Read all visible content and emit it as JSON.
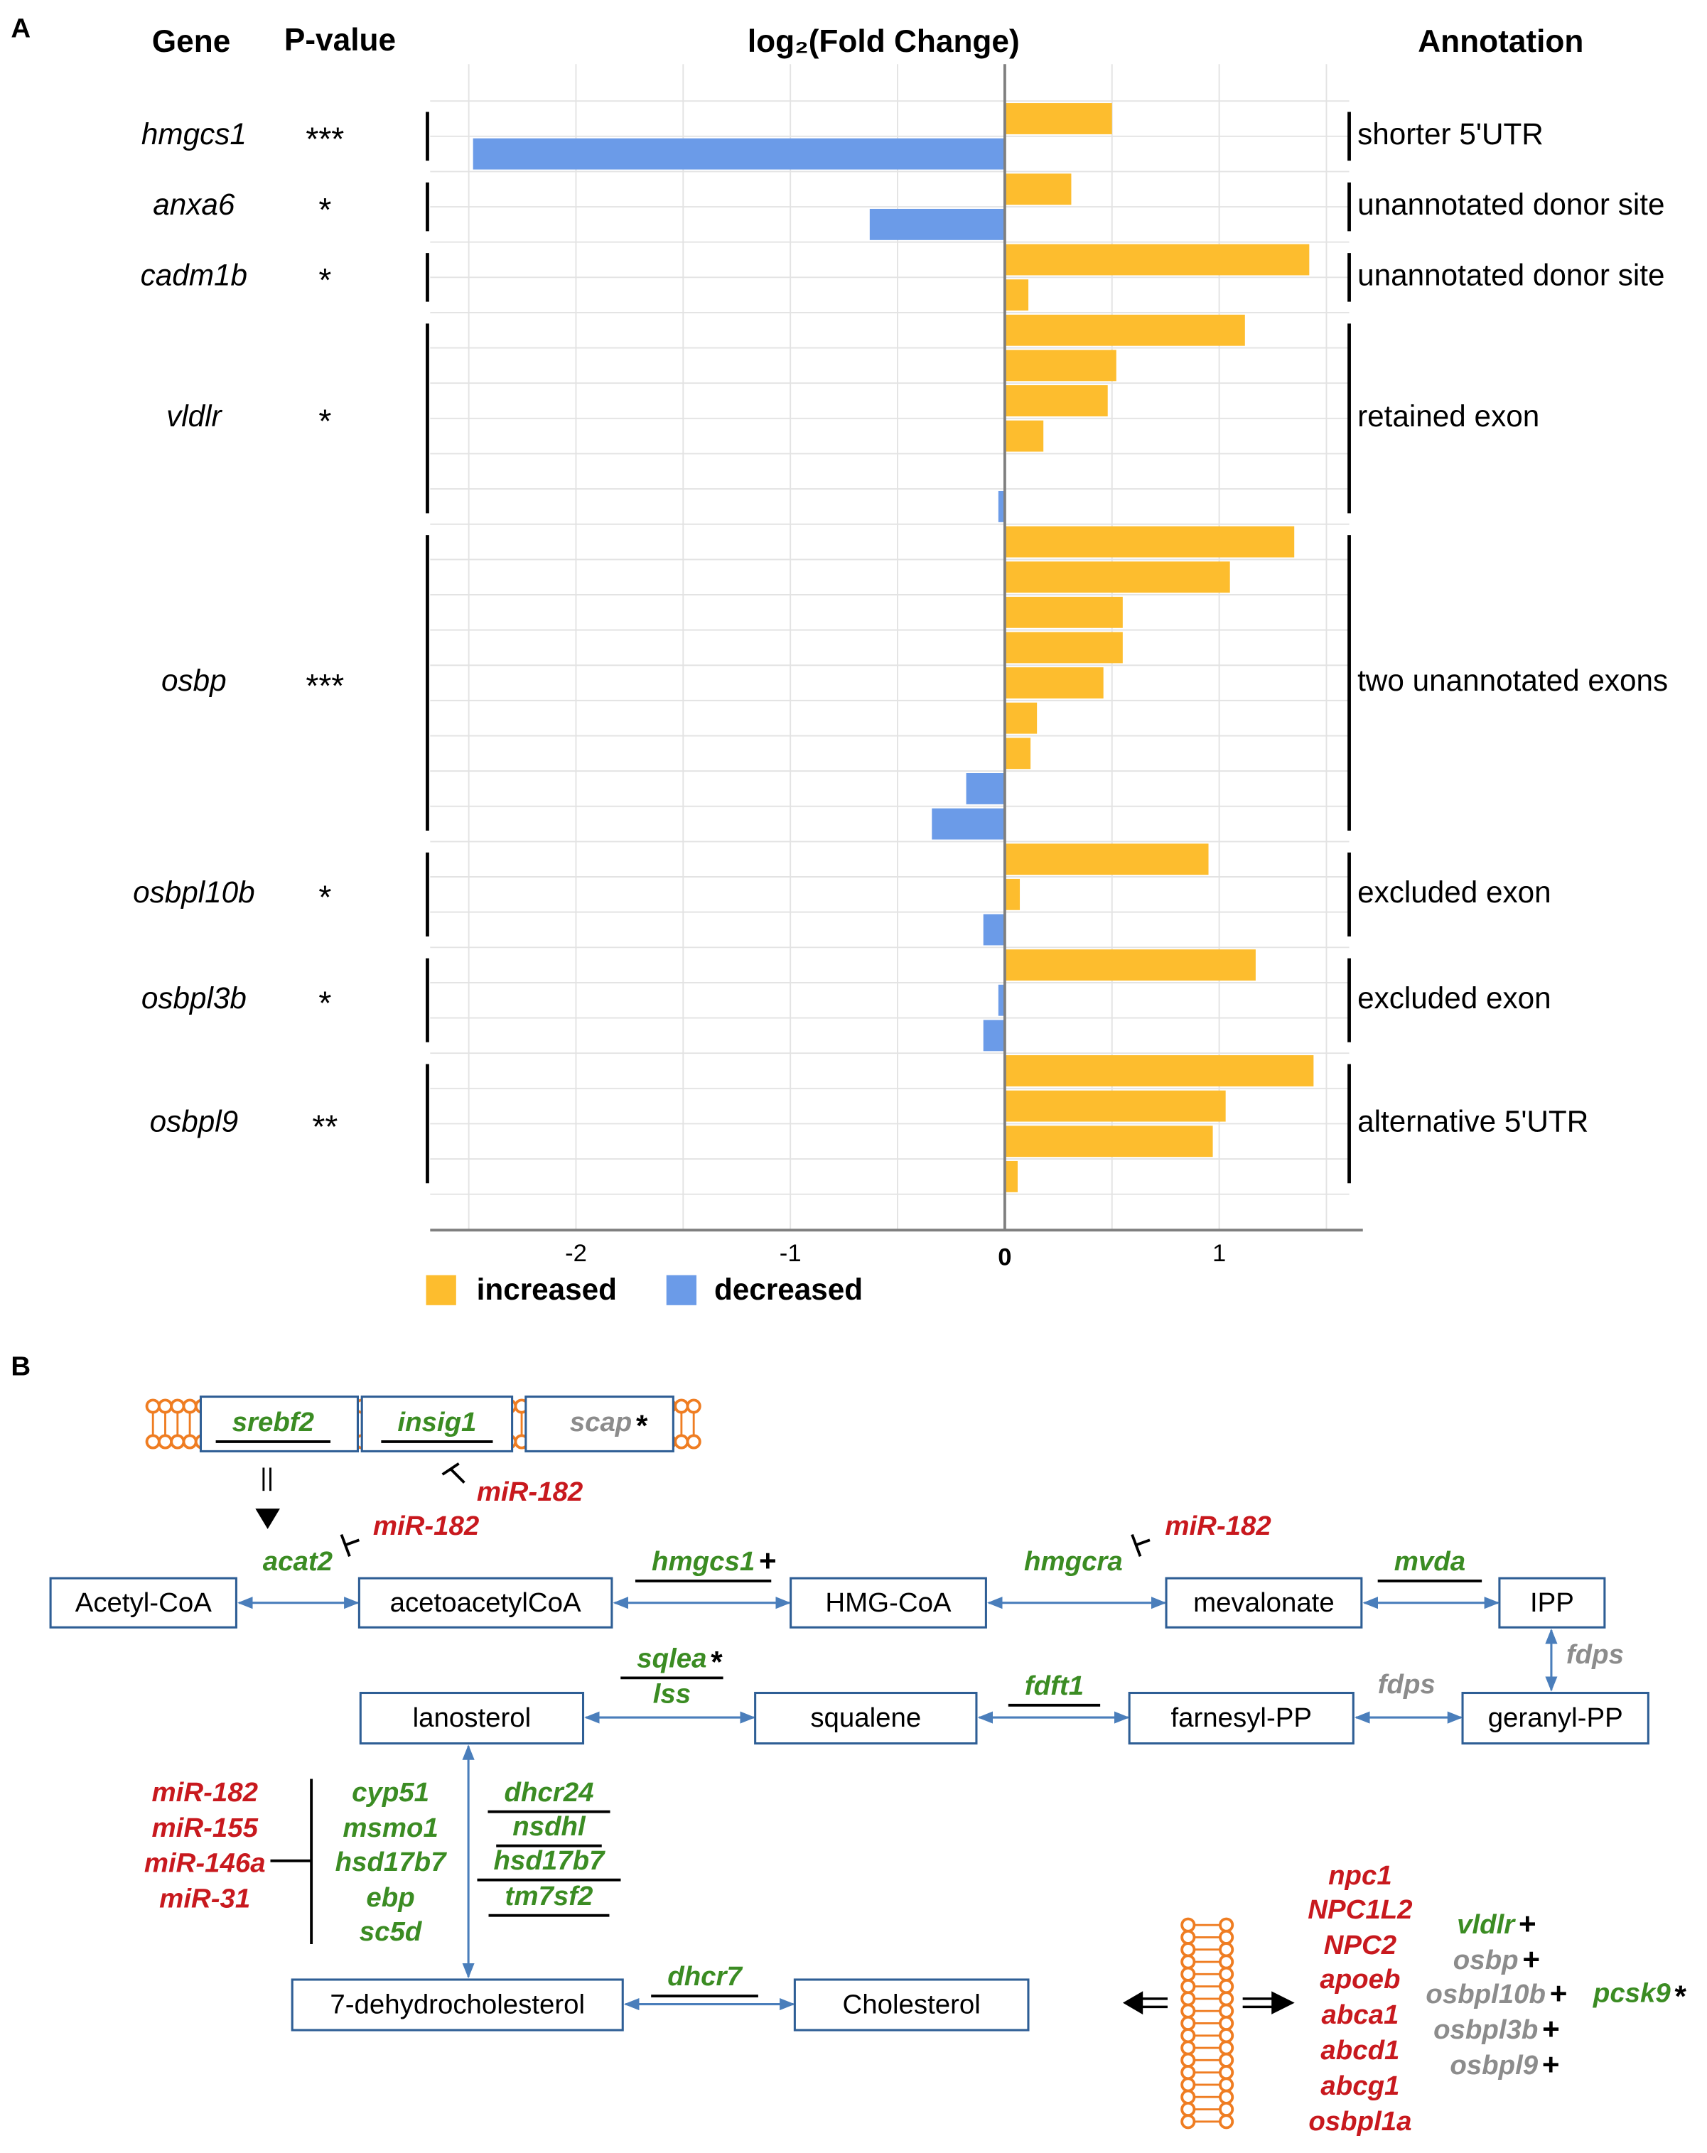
{
  "chart_data": {
    "type": "bar",
    "orientation": "horizontal",
    "label": "A",
    "title": "log₂(Fold Change)",
    "gene_header": "Gene",
    "pvalue_header": "P-value",
    "annotation_header": "Annotation",
    "xlim": [
      -2.68,
      1.67
    ],
    "xticks": [
      -2,
      -1,
      0,
      1
    ],
    "minor_xticks": [
      -2.5,
      -1.5,
      -0.5,
      0.5,
      1.5
    ],
    "grid": true,
    "legend": [
      {
        "name": "increased",
        "color": "#fdbd2e"
      },
      {
        "name": "decreased",
        "color": "#6b9be8"
      }
    ],
    "groups": [
      {
        "gene": "hmgcs1",
        "p_value": "***",
        "annotation": "shorter 5'UTR",
        "values": [
          0.5,
          -2.48
        ]
      },
      {
        "gene": "anxa6",
        "p_value": "*",
        "annotation": "unannotated donor site",
        "values": [
          0.31,
          -0.63
        ]
      },
      {
        "gene": "cadm1b",
        "p_value": "*",
        "annotation": "unannotated donor site",
        "values": [
          1.42,
          0.11
        ]
      },
      {
        "gene": "vldlr",
        "p_value": "*",
        "annotation": "retained exon",
        "values": [
          1.12,
          0.52,
          0.48,
          0.18,
          null,
          -0.03
        ]
      },
      {
        "gene": "osbp",
        "p_value": "***",
        "annotation": "two unannotated exons",
        "values": [
          1.35,
          1.05,
          0.55,
          0.55,
          0.46,
          0.15,
          0.12,
          -0.18,
          -0.34
        ]
      },
      {
        "gene": "osbpl10b",
        "p_value": "*",
        "annotation": "excluded exon",
        "values": [
          0.95,
          0.07,
          -0.1
        ]
      },
      {
        "gene": "osbpl3b",
        "p_value": "*",
        "annotation": "excluded exon",
        "values": [
          1.17,
          -0.03,
          -0.1
        ]
      },
      {
        "gene": "osbpl9",
        "p_value": "**",
        "annotation": "alternative 5'UTR",
        "values": [
          1.44,
          1.03,
          0.97,
          0.06
        ]
      }
    ]
  },
  "diagram": {
    "label": "B",
    "nodes": [
      "Acetyl-CoA",
      "acetoacetylCoA",
      "HMG-CoA",
      "mevalonate",
      "IPP",
      "lanosterol",
      "squalene",
      "farnesyl-PP",
      "geranyl-PP",
      "7-dehydrocholesterol",
      "Cholesterol"
    ],
    "labels": [
      {
        "text": "srebf2",
        "color": "#3b8c23",
        "underline": true
      },
      {
        "text": "insig1",
        "color": "#3b8c23",
        "underline": true
      },
      {
        "text": "scap",
        "color": "#8c8c8c",
        "suffix": "*"
      },
      {
        "text": "miR-182",
        "color": "#c8191e"
      },
      {
        "text": "miR-182",
        "color": "#c8191e"
      },
      {
        "text": "acat2",
        "color": "#3b8c23"
      },
      {
        "text": "hmgcs1",
        "color": "#3b8c23",
        "underline": true,
        "suffix": "+"
      },
      {
        "text": "hmgcra",
        "color": "#3b8c23"
      },
      {
        "text": "miR-182",
        "color": "#c8191e"
      },
      {
        "text": "mvda",
        "color": "#3b8c23",
        "underline": true
      },
      {
        "text": "fdps",
        "color": "#8c8c8c"
      },
      {
        "text": "fdps",
        "color": "#8c8c8c"
      },
      {
        "text": "sqlea",
        "color": "#3b8c23",
        "underline": true,
        "suffix": "*"
      },
      {
        "text": "lss",
        "color": "#3b8c23"
      },
      {
        "text": "fdft1",
        "color": "#3b8c23",
        "underline": true
      },
      {
        "text": "miR-182",
        "color": "#c8191e"
      },
      {
        "text": "miR-155",
        "color": "#c8191e"
      },
      {
        "text": "miR-146a",
        "color": "#c8191e"
      },
      {
        "text": "miR-31",
        "color": "#c8191e"
      },
      {
        "text": "cyp51",
        "color": "#3b8c23"
      },
      {
        "text": "msmo1",
        "color": "#3b8c23"
      },
      {
        "text": "hsd17b7",
        "color": "#3b8c23"
      },
      {
        "text": "ebp",
        "color": "#3b8c23"
      },
      {
        "text": "sc5d",
        "color": "#3b8c23"
      },
      {
        "text": "dhcr24",
        "color": "#3b8c23",
        "underline": true
      },
      {
        "text": "nsdhl",
        "color": "#3b8c23",
        "underline": true
      },
      {
        "text": "hsd17b7",
        "color": "#3b8c23",
        "underline": true
      },
      {
        "text": "tm7sf2",
        "color": "#3b8c23",
        "underline": true
      },
      {
        "text": "dhcr7",
        "color": "#3b8c23",
        "underline": true
      },
      {
        "text": "npc1",
        "color": "#c8191e"
      },
      {
        "text": "NPC1L2",
        "color": "#c8191e"
      },
      {
        "text": "NPC2",
        "color": "#c8191e"
      },
      {
        "text": "apoeb",
        "color": "#c8191e"
      },
      {
        "text": "abca1",
        "color": "#c8191e"
      },
      {
        "text": "abcd1",
        "color": "#c8191e"
      },
      {
        "text": "abcg1",
        "color": "#c8191e"
      },
      {
        "text": "osbpl1a",
        "color": "#c8191e"
      },
      {
        "text": "vldlr",
        "color": "#3b8c23",
        "suffix": "+"
      },
      {
        "text": "osbp",
        "color": "#8c8c8c",
        "suffix": "+"
      },
      {
        "text": "osbpl10b",
        "color": "#8c8c8c",
        "suffix": "+"
      },
      {
        "text": "osbpl3b",
        "color": "#8c8c8c",
        "suffix": "+"
      },
      {
        "text": "osbpl9",
        "color": "#8c8c8c",
        "suffix": "+"
      },
      {
        "text": "pcsk9",
        "color": "#3b8c23",
        "suffix": "*"
      }
    ]
  }
}
